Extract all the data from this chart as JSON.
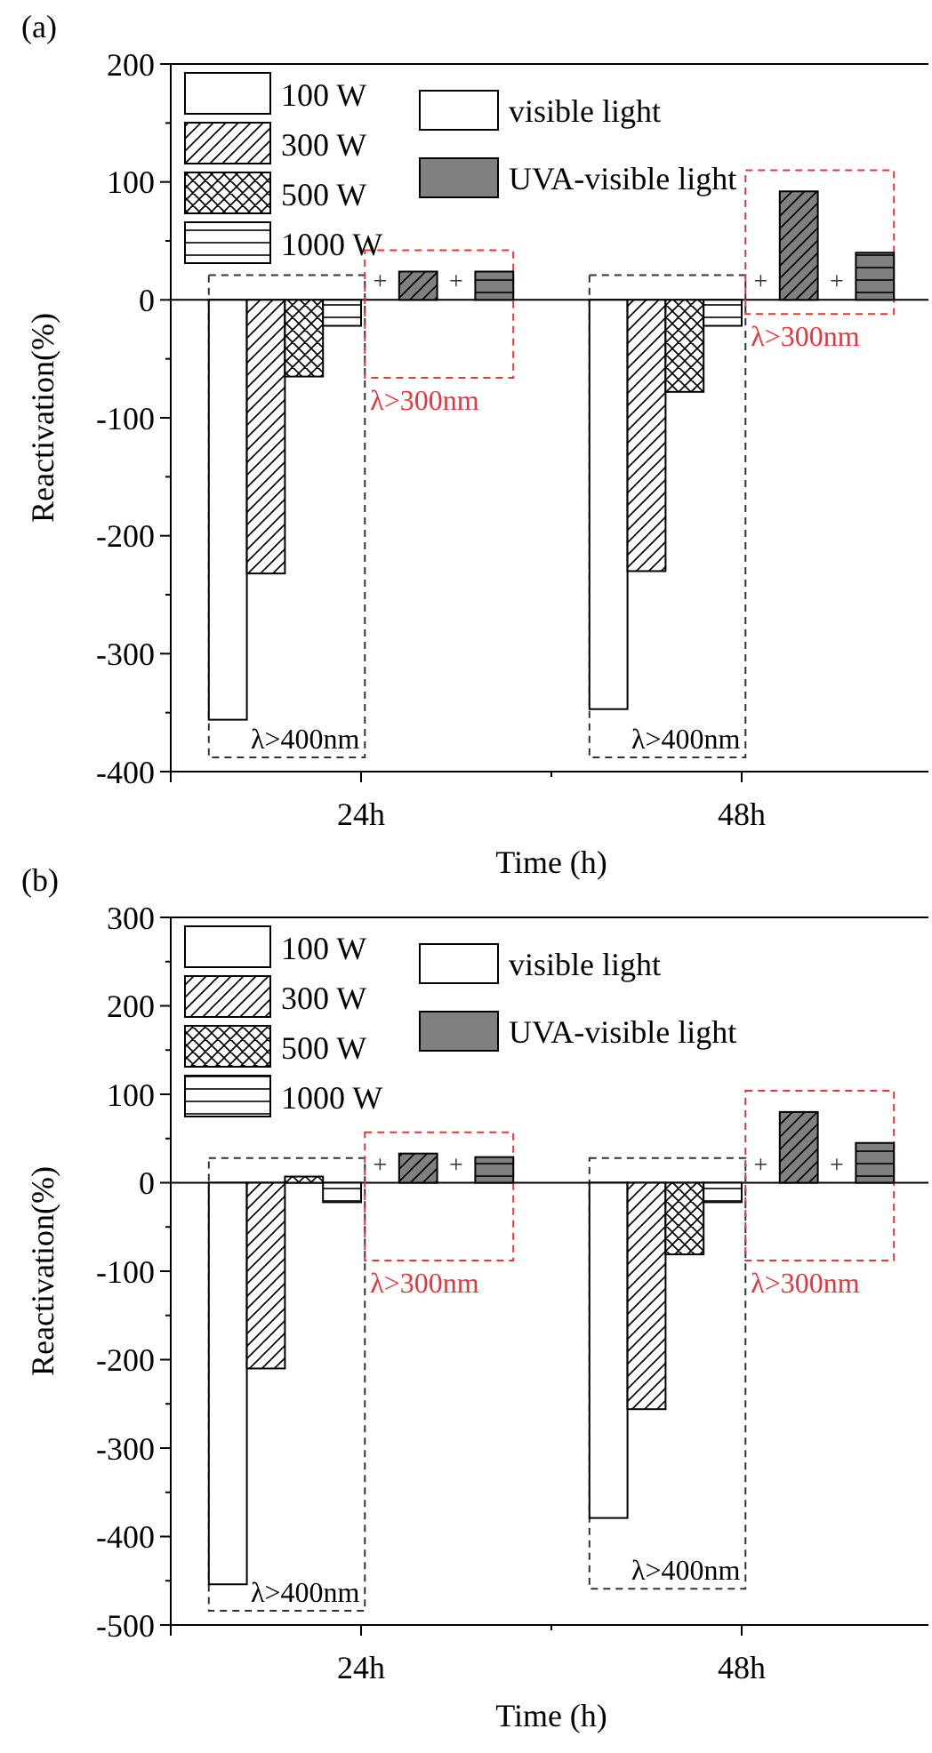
{
  "chart_data": [
    {
      "type": "bar",
      "title": "(a)",
      "xlabel": "Time (h)",
      "ylabel": "Reactivation(%)",
      "categories": [
        "24h",
        "48h"
      ],
      "series": [
        {
          "name": "100 W",
          "color": "#ffffff",
          "values": [
            -356,
            -347
          ]
        },
        {
          "name": "300 W",
          "color": "#ffffff",
          "values": [
            -232,
            -230
          ]
        },
        {
          "name": "500 W",
          "color": "#ffffff",
          "values": [
            -65,
            -78
          ]
        },
        {
          "name": "1000 W",
          "color": "#ffffff",
          "values": [
            -22,
            -22
          ]
        },
        {
          "color": "#808080",
          "values": [
            24,
            92
          ]
        },
        {
          "color": "#808080",
          "values": [
            24,
            40
          ]
        }
      ],
      "ylim": [
        -400,
        200
      ],
      "yticks": [
        -400,
        {
          "value": -350,
          "label": null
        },
        -300,
        {
          "value": -250,
          "label": null
        },
        -200,
        {
          "value": -150,
          "label": null
        },
        -100,
        {
          "value": -50,
          "label": null
        },
        0,
        {
          "value": 50,
          "label": null
        },
        100,
        {
          "value": 150,
          "label": null
        },
        200
      ],
      "legend": "top left",
      "annotations": [
        "λ>400nm",
        "λ>300nm",
        "+",
        "+",
        "λ>400nm",
        "λ>300nm",
        "+",
        "+",
        "visible light",
        "UVA-visible light"
      ]
    },
    {
      "type": "bar",
      "title": "(b)",
      "xlabel": "Time (h)",
      "ylabel": "Reactivation(%)",
      "categories": [
        "24h",
        "48h"
      ],
      "series": [
        {
          "name": "100 W",
          "color": "#ffffff",
          "values": [
            -454,
            -379
          ]
        },
        {
          "name": "300 W",
          "color": "#ffffff",
          "values": [
            -210,
            -256
          ]
        },
        {
          "name": "500 W",
          "color": "#ffffff",
          "values": [
            7,
            -81
          ]
        },
        {
          "name": "1000 W",
          "color": "#ffffff",
          "values": [
            -22,
            -22
          ]
        },
        {
          "color": "#808080",
          "values": [
            33,
            80
          ]
        },
        {
          "color": "#808080",
          "values": [
            29,
            45
          ]
        }
      ],
      "ylim": [
        -500,
        300
      ],
      "yticks": [
        -500,
        {
          "value": -450,
          "label": null
        },
        -400,
        {
          "value": -350,
          "label": null
        },
        -300,
        {
          "value": -250,
          "label": null
        },
        -200,
        {
          "value": -150,
          "label": null
        },
        -100,
        {
          "value": -50,
          "label": null
        },
        0,
        {
          "value": 50,
          "label": null
        },
        100,
        {
          "value": 150,
          "label": null
        },
        200,
        {
          "value": 250,
          "label": null
        },
        300
      ],
      "legend": "top left",
      "annotations": [
        "λ>400nm",
        "λ>300nm",
        "+",
        "+",
        "λ>400nm",
        "λ>300nm",
        "+",
        "+",
        "visible light",
        "UVA-visible light"
      ]
    }
  ]
}
